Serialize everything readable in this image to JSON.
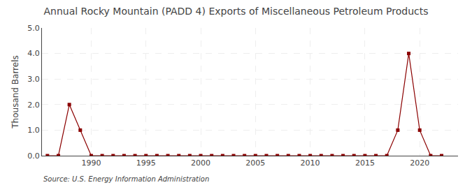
{
  "chart_data": {
    "type": "line",
    "title": "Annual Rocky Mountain (PADD 4) Exports of Miscellaneous Petroleum Products",
    "ylabel": "Thousand Barrels",
    "annotations": [
      "Source: U.S. Energy Information Administration"
    ],
    "x": [
      1986,
      1987,
      1988,
      1989,
      1990,
      1991,
      1992,
      1993,
      1994,
      1995,
      1996,
      1997,
      1998,
      1999,
      2000,
      2001,
      2002,
      2003,
      2004,
      2005,
      2006,
      2007,
      2008,
      2009,
      2010,
      2011,
      2012,
      2013,
      2014,
      2015,
      2016,
      2017,
      2018,
      2019,
      2020,
      2021,
      2022
    ],
    "values": [
      0,
      0,
      2,
      1,
      0,
      0,
      0,
      0,
      0,
      0,
      0,
      0,
      0,
      0,
      0,
      0,
      0,
      0,
      0,
      0,
      0,
      0,
      0,
      0,
      0,
      0,
      0,
      0,
      0,
      0,
      0,
      0,
      1,
      4,
      1,
      0,
      0
    ],
    "color": "#8b0000",
    "marker": "square",
    "line_style": "solid",
    "xlim": [
      1985.5,
      2023.5
    ],
    "xticks": [
      1990,
      1995,
      2000,
      2005,
      2010,
      2015,
      2020
    ],
    "ylim": [
      0.0,
      5.0
    ],
    "yticks": [
      {
        "value": 0.0,
        "label": "0.0"
      },
      {
        "value": 1.0,
        "label": "1.0"
      },
      {
        "value": 2.0,
        "label": "2.0"
      },
      {
        "value": 3.0,
        "label": "3.0"
      },
      {
        "value": 4.0,
        "label": "4.0"
      },
      {
        "value": 5.0,
        "label": "5.0"
      }
    ],
    "grid": true
  }
}
